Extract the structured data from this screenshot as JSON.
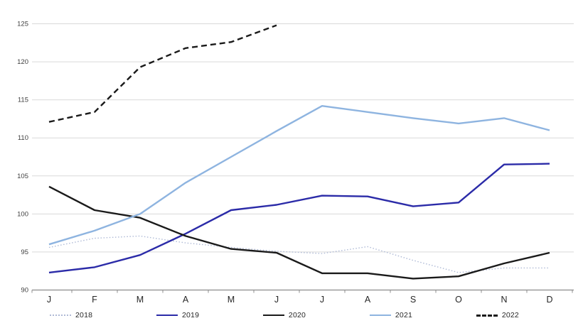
{
  "chart_data": {
    "type": "line",
    "title": "",
    "xlabel": "",
    "ylabel": "",
    "x_categories": [
      "J",
      "F",
      "M",
      "A",
      "M",
      "J",
      "J",
      "A",
      "S",
      "O",
      "N",
      "D"
    ],
    "ylim": [
      90,
      125
    ],
    "y_ticks": [
      90,
      95,
      100,
      105,
      110,
      115,
      120,
      125
    ],
    "grid": "horizontal",
    "legend_position": "bottom",
    "series": [
      {
        "name": "2018",
        "style": "dotted",
        "color": "#AFBAD6",
        "width": 1.4,
        "values": [
          95.6,
          96.8,
          97.1,
          96.2,
          95.6,
          95.1,
          94.8,
          95.7,
          93.9,
          92.3,
          92.9,
          92.9
        ]
      },
      {
        "name": "2019",
        "style": "solid",
        "color": "#2B2BA8",
        "width": 2.4,
        "values": [
          92.3,
          93.0,
          94.6,
          97.4,
          100.5,
          101.2,
          102.4,
          102.3,
          101.0,
          101.5,
          106.5,
          106.6
        ]
      },
      {
        "name": "2020",
        "style": "solid",
        "color": "#1A1A1A",
        "width": 2.4,
        "values": [
          103.6,
          100.5,
          99.5,
          97.1,
          95.4,
          94.9,
          92.2,
          92.2,
          91.5,
          91.8,
          93.5,
          94.9
        ]
      },
      {
        "name": "2021",
        "style": "solid",
        "color": "#8EB4E0",
        "width": 2.4,
        "values": [
          96.0,
          97.8,
          100.0,
          104.1,
          107.5,
          110.9,
          114.2,
          113.4,
          112.6,
          111.9,
          112.6,
          111.0
        ]
      },
      {
        "name": "2022",
        "style": "dashed",
        "color": "#1A1A1A",
        "width": 2.4,
        "values": [
          112.1,
          113.4,
          119.3,
          121.8,
          122.6,
          124.8
        ]
      }
    ],
    "colors": {
      "background": "#FFFFFF",
      "gridline": "#D9D9D9",
      "axis_line": "#8C8C8C",
      "tick_label": "#404040",
      "month_label": "#262626"
    }
  }
}
